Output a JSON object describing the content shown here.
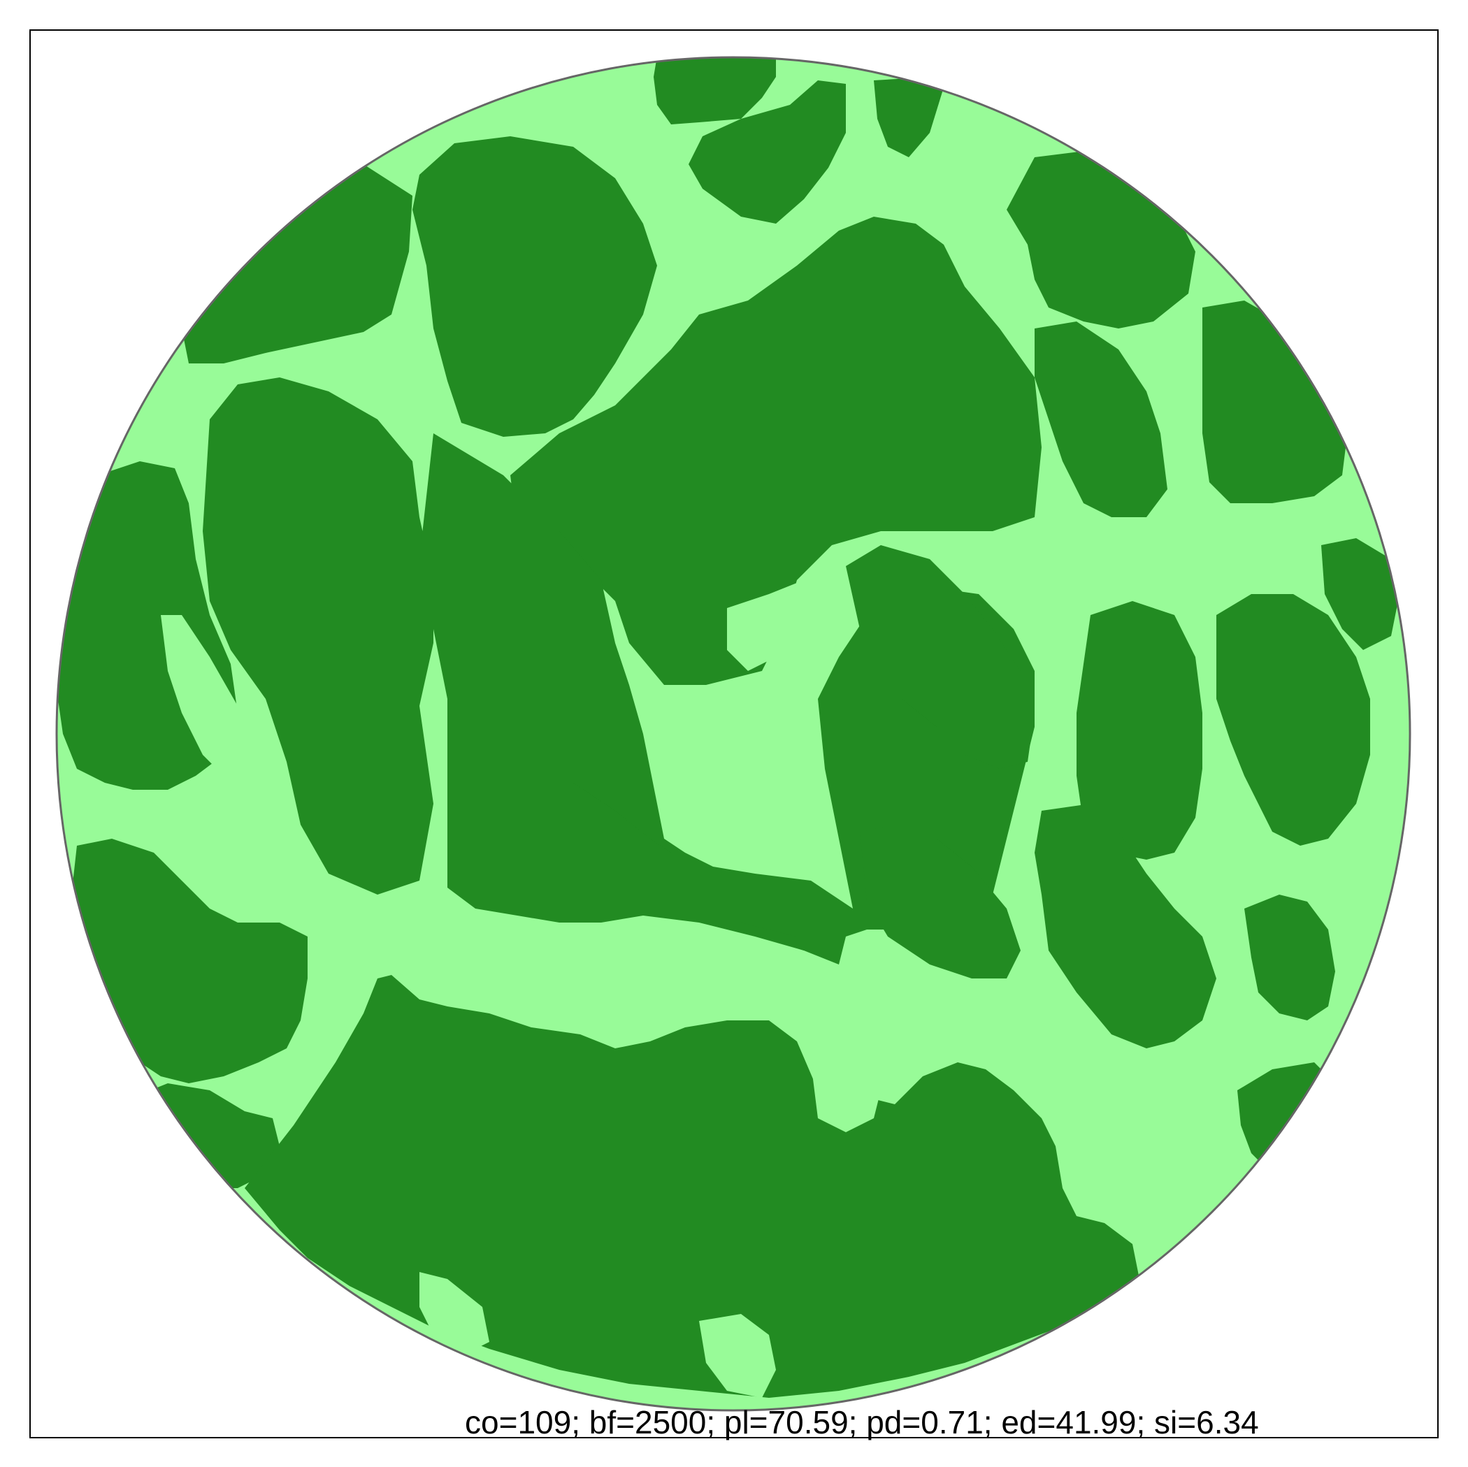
{
  "colors": {
    "background": "#ffffff",
    "frame": "#000000",
    "circle_outline": "#666666",
    "habitat": "#228B22",
    "matrix": "#98FB98"
  },
  "landscape": {
    "shape": "circle",
    "classes": [
      "habitat",
      "matrix"
    ],
    "habitat_fraction": 0.7059
  },
  "stats": {
    "caption": "co=109; bf=2500; pl=70.59; pd=0.71; ed=41.99; si=6.34"
  }
}
